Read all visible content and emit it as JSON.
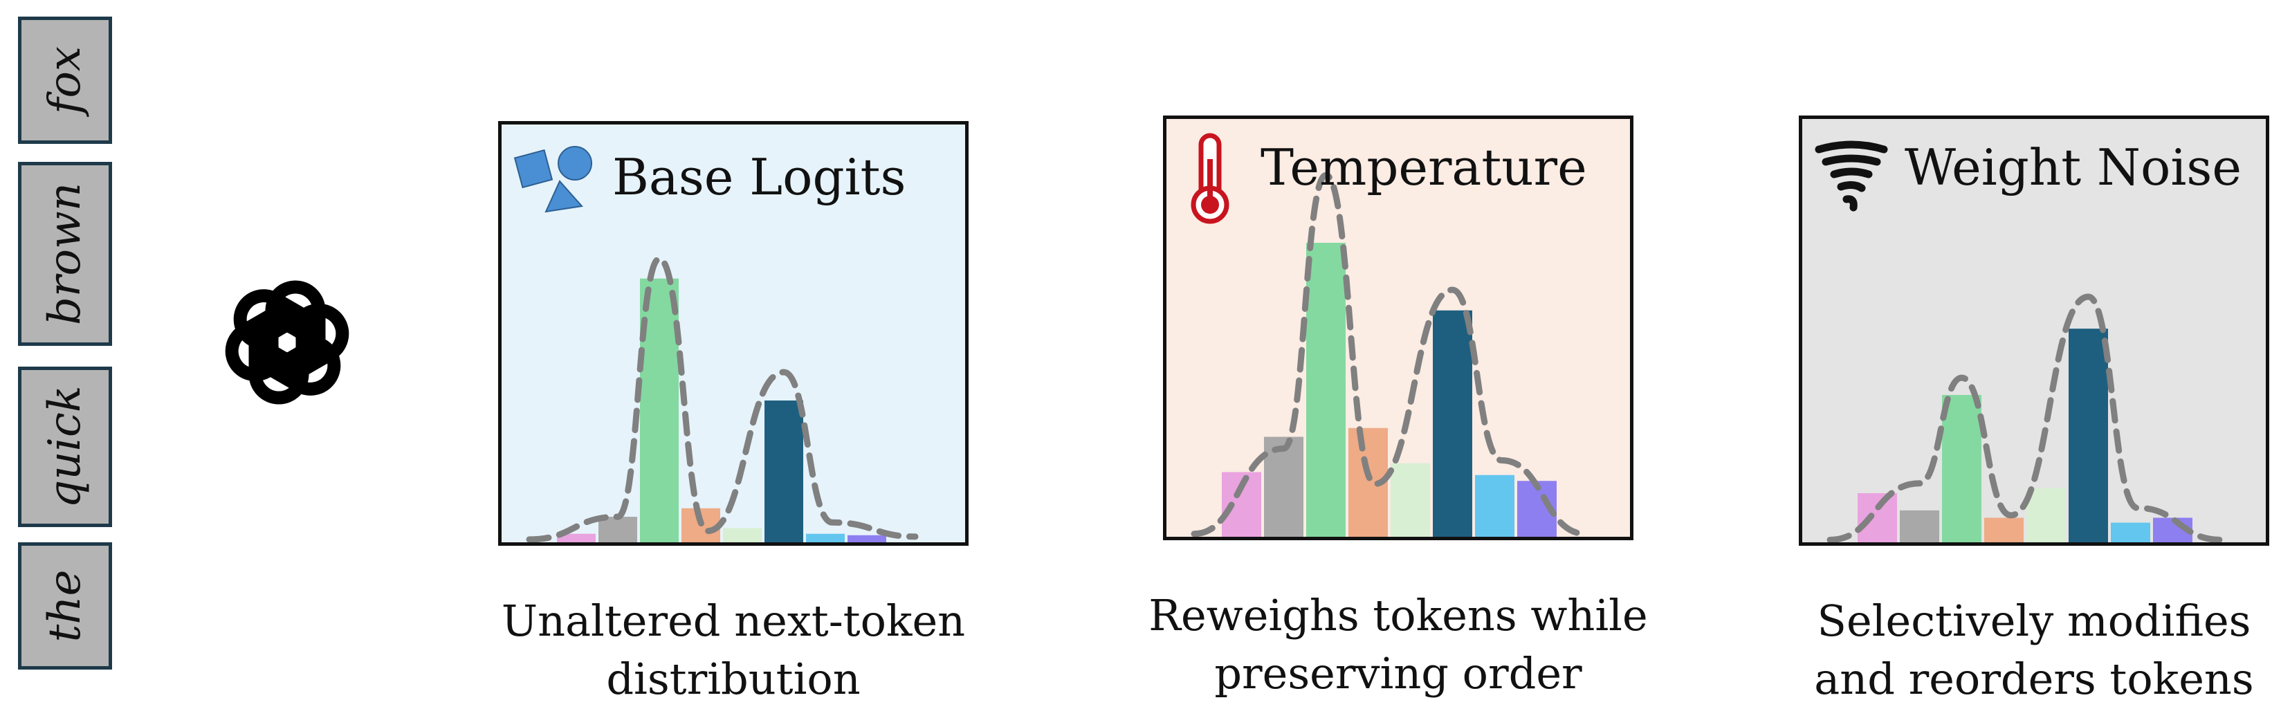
{
  "tokens": [
    "fox",
    "brown",
    "quick",
    "the"
  ],
  "panels": [
    {
      "title": "Base Logits",
      "icon": "shapes-icon",
      "background": "#e6f3fa",
      "bars": [
        0.03,
        0.09,
        0.93,
        0.12,
        0.05,
        0.5,
        0.03,
        0.025
      ],
      "curve": [
        0.01,
        0.09,
        1.0,
        0.04,
        0.6,
        0.07,
        0.02
      ],
      "caption": [
        "Unaltered next-token",
        "distribution"
      ]
    },
    {
      "title": "Temperature",
      "icon": "thermometer-icon",
      "background": "#fbece4",
      "bars": [
        0.22,
        0.34,
        1.0,
        0.37,
        0.25,
        0.77,
        0.21,
        0.19
      ],
      "curve": [
        0.01,
        0.3,
        1.23,
        0.18,
        0.84,
        0.26,
        0.01
      ],
      "caption": [
        "Reweighs tokens while",
        "preserving order"
      ]
    },
    {
      "title": "Weight Noise",
      "icon": "tornado-icon",
      "background": "#e4e4e4",
      "bars": [
        0.2,
        0.13,
        0.6,
        0.1,
        0.22,
        0.87,
        0.08,
        0.1
      ],
      "curve": [
        0.01,
        0.24,
        0.67,
        0.11,
        1.0,
        0.14,
        0.01
      ],
      "caption": [
        "Selectively modifies",
        "and reorders tokens"
      ]
    }
  ],
  "bar_colors": [
    "#e9a3df",
    "#a8a8a8",
    "#84d9a0",
    "#eeab86",
    "#d8efd3",
    "#1e5f80",
    "#63c6ef",
    "#8e7ff0"
  ],
  "colors": {
    "token_fill": "#b4b4b4",
    "token_border": "#1e3a4a",
    "curve": "#808080"
  }
}
